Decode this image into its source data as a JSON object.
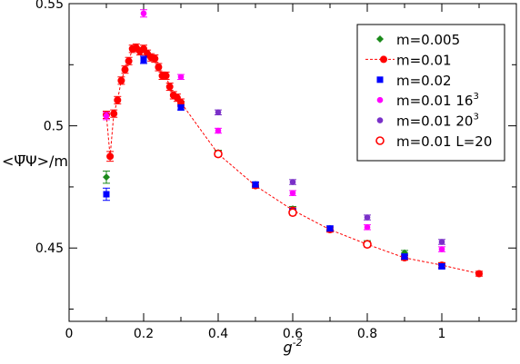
{
  "chart_data": {
    "type": "scatter",
    "xlabel": "g",
    "xlabel_sup": "-2",
    "ylabel": "<Ψ̅Ψ>/m",
    "xlim": [
      0,
      1.2
    ],
    "ylim": [
      0.42,
      0.55
    ],
    "xticks": [
      0,
      0.2,
      0.4,
      0.6,
      0.8,
      1
    ],
    "xtick_labels": [
      "0",
      "0.2",
      "0.4",
      "0.6",
      "0.8",
      "1"
    ],
    "yticks": [
      0.45,
      0.5,
      0.55
    ],
    "ytick_labels": [
      "0.45",
      "0.5",
      "0.55"
    ],
    "legend_position": "top-right",
    "series": [
      {
        "name": "m=0.005",
        "color": "#1a8a1a",
        "marker": "diamond",
        "line": false,
        "points": [
          [
            0.1,
            0.479,
            0.0025
          ],
          [
            0.3,
            0.509,
            0.001
          ],
          [
            0.4,
            0.489,
            0.001
          ],
          [
            0.5,
            0.476,
            0.001
          ],
          [
            0.6,
            0.466,
            0.001
          ],
          [
            0.7,
            0.458,
            0.001
          ],
          [
            0.8,
            0.452,
            0.001
          ],
          [
            0.9,
            0.448,
            0.001
          ],
          [
            1.0,
            0.443,
            0.001
          ]
        ]
      },
      {
        "name": "m=0.01",
        "color": "#ff0000",
        "marker": "circle",
        "line": true,
        "points": [
          [
            0.1,
            0.5045,
            0.0015
          ],
          [
            0.11,
            0.4875,
            0.002
          ],
          [
            0.12,
            0.505,
            0.0015
          ],
          [
            0.13,
            0.5105,
            0.0015
          ],
          [
            0.14,
            0.5185,
            0.0015
          ],
          [
            0.15,
            0.523,
            0.0015
          ],
          [
            0.16,
            0.5265,
            0.0015
          ],
          [
            0.17,
            0.5315,
            0.0015
          ],
          [
            0.18,
            0.532,
            0.0015
          ],
          [
            0.19,
            0.5305,
            0.0015
          ],
          [
            0.2,
            0.5315,
            0.0015
          ],
          [
            0.21,
            0.5295,
            0.0015
          ],
          [
            0.22,
            0.528,
            0.0015
          ],
          [
            0.23,
            0.5275,
            0.0015
          ],
          [
            0.24,
            0.524,
            0.0015
          ],
          [
            0.25,
            0.5205,
            0.0015
          ],
          [
            0.26,
            0.5205,
            0.0015
          ],
          [
            0.27,
            0.516,
            0.0015
          ],
          [
            0.28,
            0.5125,
            0.0015
          ],
          [
            0.29,
            0.5115,
            0.0015
          ],
          [
            0.3,
            0.5095,
            0.0015
          ],
          [
            0.4,
            0.4885,
            0.001
          ],
          [
            0.5,
            0.4755,
            0.001
          ],
          [
            0.6,
            0.4655,
            0.001
          ],
          [
            0.7,
            0.4575,
            0.001
          ],
          [
            0.8,
            0.4515,
            0.001
          ],
          [
            0.9,
            0.446,
            0.001
          ],
          [
            1.0,
            0.443,
            0.001
          ],
          [
            1.1,
            0.4395,
            0.001
          ]
        ]
      },
      {
        "name": "m=0.02",
        "color": "#0000ff",
        "marker": "square",
        "line": false,
        "points": [
          [
            0.1,
            0.472,
            0.0025
          ],
          [
            0.2,
            0.527,
            0.0015
          ],
          [
            0.3,
            0.5075,
            0.001
          ],
          [
            0.5,
            0.476,
            0.001
          ],
          [
            0.6,
            0.465,
            0.001
          ],
          [
            0.7,
            0.458,
            0.001
          ],
          [
            0.9,
            0.4465,
            0.001
          ],
          [
            1.0,
            0.4425,
            0.001
          ]
        ]
      },
      {
        "name": "m=0.01 16",
        "name_sup": "3",
        "color": "#ff00ff",
        "marker": "circle-small",
        "line": false,
        "points": [
          [
            0.1,
            0.504,
            0.0015
          ],
          [
            0.2,
            0.546,
            0.0015
          ],
          [
            0.3,
            0.52,
            0.001
          ],
          [
            0.4,
            0.498,
            0.001
          ],
          [
            0.6,
            0.4725,
            0.001
          ],
          [
            0.8,
            0.4585,
            0.001
          ],
          [
            1.0,
            0.4495,
            0.001
          ]
        ]
      },
      {
        "name": "m=0.01 20",
        "name_sup": "3",
        "color": "#7a30c8",
        "marker": "circle-small",
        "line": false,
        "points": [
          [
            0.4,
            0.5055,
            0.001
          ],
          [
            0.6,
            0.477,
            0.001
          ],
          [
            0.8,
            0.4625,
            0.001
          ],
          [
            1.0,
            0.4525,
            0.001
          ]
        ]
      },
      {
        "name": "m=0.01 L=20",
        "color": "#ff0000",
        "marker": "circle-open",
        "line": false,
        "points": [
          [
            0.4,
            0.4885,
            0.001
          ],
          [
            0.6,
            0.4645,
            0.001
          ],
          [
            0.8,
            0.4515,
            0.001
          ]
        ]
      }
    ]
  }
}
